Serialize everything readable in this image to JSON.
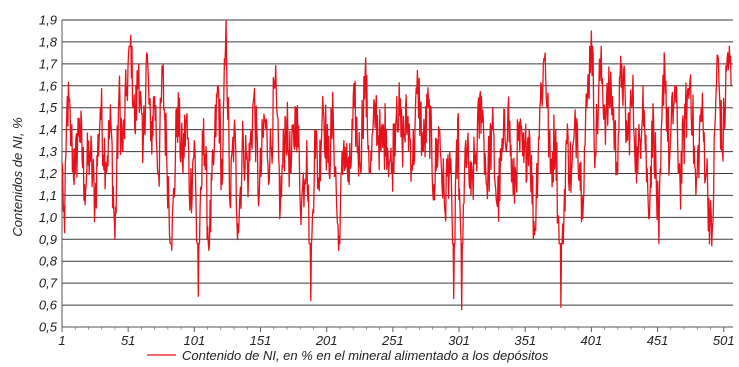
{
  "chart_data": {
    "type": "line",
    "title": "",
    "xlabel": "",
    "ylabel": "Contenidos de NI, %",
    "xlim": [
      1,
      508
    ],
    "ylim": [
      0.5,
      1.9
    ],
    "grid": true,
    "legend_position": "bottom",
    "x_ticks": [
      "1",
      "51",
      "101",
      "151",
      "201",
      "251",
      "301",
      "351",
      "401",
      "451",
      "501"
    ],
    "y_ticks": [
      "0,5",
      "0,6",
      "0,7",
      "0,8",
      "0,9",
      "1,0",
      "1,1",
      "1,2",
      "1,3",
      "1,4",
      "1,5",
      "1,6",
      "1,7",
      "1,8",
      "1,9"
    ],
    "series": [
      {
        "name": "Contenido de NI, en % en el mineral alimentado a los depósitos",
        "color": "#e8101a",
        "anchors_x": [
          1,
          3,
          5,
          8,
          11,
          14,
          18,
          22,
          26,
          30,
          34,
          38,
          41,
          44,
          47,
          50,
          53,
          56,
          59,
          62,
          65,
          68,
          71,
          74,
          77,
          80,
          84,
          88,
          92,
          95,
          98,
          101,
          104,
          108,
          112,
          116,
          119,
          122,
          125,
          128,
          131,
          134,
          138,
          142,
          146,
          150,
          154,
          158,
          162,
          166,
          170,
          174,
          178,
          182,
          186,
          189,
          192,
          195,
          198,
          202,
          206,
          210,
          214,
          218,
          222,
          226,
          230,
          234,
          238,
          242,
          246,
          250,
          254,
          258,
          262,
          266,
          270,
          274,
          278,
          282,
          286,
          290,
          294,
          297,
          300,
          303,
          306,
          310,
          314,
          318,
          322,
          326,
          330,
          334,
          338,
          342,
          346,
          350,
          354,
          358,
          362,
          366,
          370,
          374,
          378,
          382,
          386,
          390,
          394,
          398,
          401,
          404,
          408,
          412,
          416,
          420,
          424,
          428,
          432,
          436,
          440,
          444,
          448,
          452,
          456,
          460,
          464,
          468,
          472,
          476,
          480,
          484,
          488,
          492,
          496,
          500,
          504,
          507
        ],
        "anchors_y": [
          1.25,
          0.93,
          1.55,
          1.35,
          1.2,
          1.45,
          1.15,
          1.3,
          1.08,
          1.5,
          1.25,
          1.42,
          0.9,
          1.55,
          1.3,
          1.6,
          1.83,
          1.4,
          1.7,
          1.25,
          1.75,
          1.35,
          1.55,
          1.2,
          1.65,
          1.3,
          0.85,
          1.5,
          1.25,
          1.45,
          1.1,
          1.35,
          0.64,
          1.45,
          0.85,
          1.3,
          1.6,
          1.15,
          1.9,
          1.05,
          1.4,
          0.97,
          1.35,
          1.2,
          1.55,
          1.1,
          1.45,
          1.25,
          1.6,
          1.05,
          1.45,
          1.2,
          1.5,
          1.05,
          1.35,
          0.62,
          1.4,
          1.15,
          1.55,
          1.25,
          1.45,
          0.85,
          1.35,
          1.15,
          1.5,
          1.25,
          1.65,
          1.2,
          1.5,
          1.3,
          1.4,
          1.2,
          1.55,
          1.35,
          1.45,
          1.25,
          1.6,
          1.3,
          1.5,
          1.15,
          1.4,
          1.05,
          1.3,
          0.63,
          1.45,
          0.58,
          1.35,
          1.1,
          1.3,
          1.55,
          1.15,
          1.4,
          1.05,
          1.3,
          1.5,
          1.1,
          1.35,
          1.25,
          1.4,
          0.92,
          1.5,
          1.75,
          1.2,
          1.4,
          0.59,
          1.35,
          1.2,
          1.45,
          1.1,
          1.55,
          1.85,
          1.3,
          1.7,
          1.45,
          1.6,
          1.25,
          1.7,
          1.35,
          1.55,
          1.2,
          1.6,
          1.05,
          1.45,
          0.88,
          1.75,
          1.25,
          1.6,
          1.15,
          1.45,
          1.65,
          1.1,
          1.5,
          1.2,
          0.87,
          1.74,
          1.3,
          1.75,
          1.6
        ]
      }
    ]
  }
}
